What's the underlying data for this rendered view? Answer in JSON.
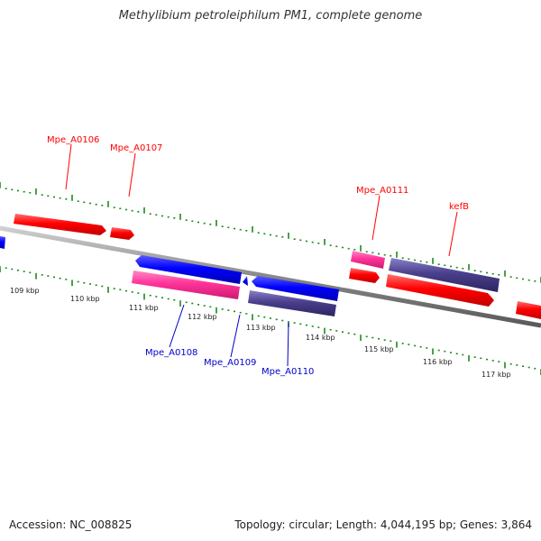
{
  "title": "Methylibium petroleiphilum PM1, complete genome",
  "footer": {
    "accession": "Accession: NC_008825",
    "stats": "Topology: circular; Length: 4,044,195 bp; Genes: 3,864"
  },
  "axis": {
    "tick_labels": [
      "109 kbp",
      "110 kbp",
      "111 kbp",
      "112 kbp",
      "113 kbp",
      "114 kbp",
      "115 kbp",
      "116 kbp",
      "117 kbp"
    ]
  },
  "genes": [
    {
      "name": "Mpe_A0106",
      "color": "#ff0000"
    },
    {
      "name": "Mpe_A0107",
      "color": "#ff0000"
    },
    {
      "name": "Mpe_A0108",
      "color": "#0000ff"
    },
    {
      "name": "Mpe_A0109",
      "color": "#0000ff"
    },
    {
      "name": "Mpe_A0110",
      "color": "#0000cc"
    },
    {
      "name": "Mpe_A0111",
      "color": "#ff0000"
    },
    {
      "name": "kefB",
      "color": "#ff0000"
    }
  ],
  "colors": {
    "cds_forward": "#ff0000",
    "cds_reverse": "#0000ff",
    "rna_pink": "#ff3399",
    "feature_purple": "#4a3f8c",
    "backbone": "#888888",
    "tick_green": "#1a8a1a"
  }
}
